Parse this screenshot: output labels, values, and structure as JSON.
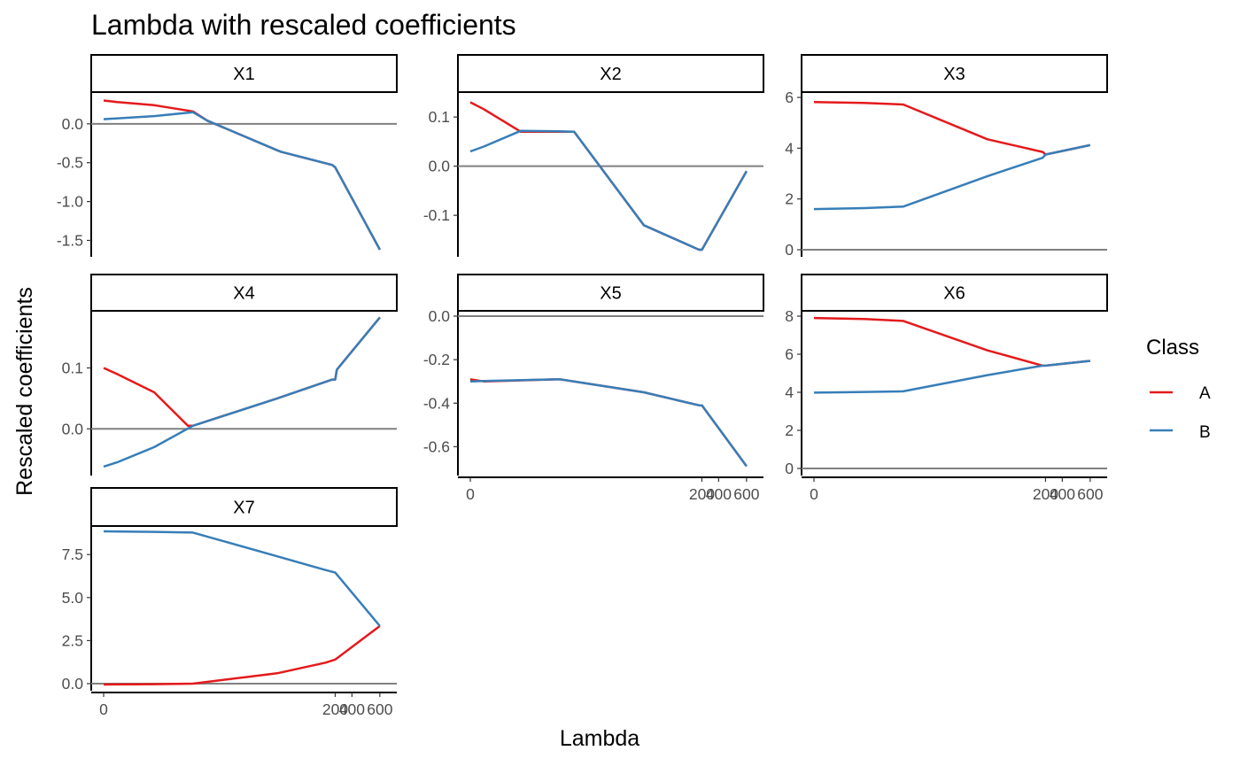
{
  "chart_data": {
    "type": "line",
    "title": "Lambda with rescaled coefficients",
    "xlabel": "Lambda",
    "ylabel": "Rescaled coefficients",
    "legend": {
      "title": "Class",
      "position": "right",
      "entries": [
        {
          "name": "A",
          "color": "#E41A1C"
        },
        {
          "name": "B",
          "color": "#377EB8"
        }
      ]
    },
    "x_axis_tick_labels": [
      "0",
      "200",
      "400",
      "600"
    ],
    "facets": [
      {
        "name": "X1",
        "ylim": [
          -1.62,
          0.34
        ],
        "y_ticks": [
          {
            "value": 0.0,
            "label": "0.0"
          },
          {
            "value": -0.5,
            "label": "-0.5"
          },
          {
            "value": -1.0,
            "label": "-1.0"
          },
          {
            "value": -1.5,
            "label": "-1.5"
          }
        ],
        "series": [
          {
            "name": "A",
            "points": [
              [
                0,
                0.3
              ],
              [
                8,
                0.28
              ],
              [
                30,
                0.24
              ],
              [
                53,
                0.16
              ],
              [
                68,
                0.04
              ],
              [
                140,
                -0.34
              ],
              [
                144,
                -0.36
              ],
              [
                197,
                -0.53
              ],
              [
                200,
                -0.56
              ],
              [
                600,
                -1.62
              ]
            ]
          },
          {
            "name": "B",
            "points": [
              [
                0,
                0.06
              ],
              [
                30,
                0.1
              ],
              [
                53,
                0.15
              ],
              [
                68,
                0.04
              ],
              [
                140,
                -0.34
              ],
              [
                144,
                -0.36
              ],
              [
                197,
                -0.53
              ],
              [
                200,
                -0.56
              ],
              [
                600,
                -1.62
              ]
            ]
          }
        ]
      },
      {
        "name": "X2",
        "ylim": [
          -0.17,
          0.14
        ],
        "y_ticks": [
          {
            "value": 0.1,
            "label": "0.1"
          },
          {
            "value": 0.0,
            "label": "0.0"
          },
          {
            "value": -0.1,
            "label": "-0.1"
          }
        ],
        "series": [
          {
            "name": "A",
            "points": [
              [
                0,
                0.13
              ],
              [
                8,
                0.116
              ],
              [
                30,
                0.07
              ],
              [
                53,
                0.07
              ],
              [
                68,
                0.07
              ],
              [
                140,
                -0.12
              ],
              [
                197,
                -0.17
              ],
              [
                200,
                -0.17
              ],
              [
                600,
                -0.01
              ]
            ]
          },
          {
            "name": "B",
            "points": [
              [
                0,
                0.03
              ],
              [
                8,
                0.04
              ],
              [
                30,
                0.072
              ],
              [
                53,
                0.071
              ],
              [
                68,
                0.07
              ],
              [
                140,
                -0.12
              ],
              [
                197,
                -0.17
              ],
              [
                200,
                -0.17
              ],
              [
                600,
                -0.01
              ]
            ]
          }
        ]
      },
      {
        "name": "X3",
        "ylim": [
          0,
          6
        ],
        "y_ticks": [
          {
            "value": 6,
            "label": "6"
          },
          {
            "value": 4,
            "label": "4"
          },
          {
            "value": 2,
            "label": "2"
          },
          {
            "value": 0,
            "label": "0"
          }
        ],
        "series": [
          {
            "name": "A",
            "points": [
              [
                0,
                5.82
              ],
              [
                30,
                5.78
              ],
              [
                53,
                5.72
              ],
              [
                140,
                4.35
              ],
              [
                197,
                3.85
              ],
              [
                200,
                3.75
              ],
              [
                600,
                4.12
              ]
            ]
          },
          {
            "name": "B",
            "points": [
              [
                0,
                1.6
              ],
              [
                30,
                1.64
              ],
              [
                53,
                1.7
              ],
              [
                140,
                2.9
              ],
              [
                197,
                3.62
              ],
              [
                200,
                3.75
              ],
              [
                600,
                4.12
              ]
            ]
          }
        ]
      },
      {
        "name": "X4",
        "ylim": [
          -0.065,
          0.185
        ],
        "y_ticks": [
          {
            "value": 0.1,
            "label": "0.1"
          },
          {
            "value": 0.0,
            "label": "0.0"
          }
        ],
        "series": [
          {
            "name": "A",
            "points": [
              [
                0,
                0.1
              ],
              [
                8,
                0.09
              ],
              [
                30,
                0.06
              ],
              [
                50,
                0.005
              ],
              [
                53,
                0.005
              ],
              [
                140,
                0.05
              ],
              [
                197,
                0.081
              ],
              [
                200,
                0.081
              ],
              [
                220,
                0.097
              ],
              [
                600,
                0.183
              ]
            ]
          },
          {
            "name": "B",
            "points": [
              [
                0,
                -0.062
              ],
              [
                8,
                -0.055
              ],
              [
                30,
                -0.03
              ],
              [
                53,
                0.005
              ],
              [
                140,
                0.05
              ],
              [
                197,
                0.081
              ],
              [
                200,
                0.081
              ],
              [
                220,
                0.097
              ],
              [
                600,
                0.183
              ]
            ]
          }
        ]
      },
      {
        "name": "X5",
        "ylim": [
          -0.7,
          0.0
        ],
        "y_ticks": [
          {
            "value": 0.0,
            "label": "0.0"
          },
          {
            "value": -0.2,
            "label": "-0.2"
          },
          {
            "value": -0.4,
            "label": "-0.4"
          },
          {
            "value": -0.6,
            "label": "-0.6"
          }
        ],
        "series": [
          {
            "name": "A",
            "points": [
              [
                0,
                -0.29
              ],
              [
                8,
                -0.3
              ],
              [
                53,
                -0.29
              ],
              [
                140,
                -0.35
              ],
              [
                197,
                -0.41
              ],
              [
                200,
                -0.41
              ],
              [
                600,
                -0.69
              ]
            ]
          },
          {
            "name": "B",
            "points": [
              [
                0,
                -0.3
              ],
              [
                8,
                -0.298
              ],
              [
                53,
                -0.29
              ],
              [
                140,
                -0.35
              ],
              [
                197,
                -0.41
              ],
              [
                200,
                -0.41
              ],
              [
                600,
                -0.69
              ]
            ]
          }
        ]
      },
      {
        "name": "X6",
        "ylim": [
          0,
          8
        ],
        "y_ticks": [
          {
            "value": 8,
            "label": "8"
          },
          {
            "value": 6,
            "label": "6"
          },
          {
            "value": 4,
            "label": "4"
          },
          {
            "value": 2,
            "label": "2"
          },
          {
            "value": 0,
            "label": "0"
          }
        ],
        "series": [
          {
            "name": "A",
            "points": [
              [
                0,
                7.9
              ],
              [
                30,
                7.85
              ],
              [
                53,
                7.75
              ],
              [
                140,
                6.2
              ],
              [
                197,
                5.4
              ],
              [
                200,
                5.4
              ],
              [
                600,
                5.65
              ]
            ]
          },
          {
            "name": "B",
            "points": [
              [
                0,
                3.98
              ],
              [
                30,
                4.02
              ],
              [
                53,
                4.05
              ],
              [
                140,
                4.9
              ],
              [
                197,
                5.4
              ],
              [
                200,
                5.4
              ],
              [
                600,
                5.65
              ]
            ]
          }
        ]
      },
      {
        "name": "X7",
        "ylim": [
          0,
          8.85
        ],
        "y_ticks": [
          {
            "value": 7.5,
            "label": "7.5"
          },
          {
            "value": 5.0,
            "label": "5.0"
          },
          {
            "value": 2.5,
            "label": "2.5"
          },
          {
            "value": 0.0,
            "label": "0.0"
          }
        ],
        "series": [
          {
            "name": "A",
            "points": [
              [
                0,
                -0.05
              ],
              [
                30,
                -0.03
              ],
              [
                53,
                0.0
              ],
              [
                140,
                0.6
              ],
              [
                190,
                1.22
              ],
              [
                200,
                1.4
              ],
              [
                600,
                3.35
              ]
            ]
          },
          {
            "name": "B",
            "points": [
              [
                0,
                8.85
              ],
              [
                30,
                8.82
              ],
              [
                53,
                8.78
              ],
              [
                140,
                7.4
              ],
              [
                190,
                6.6
              ],
              [
                200,
                6.45
              ],
              [
                600,
                3.35
              ]
            ]
          }
        ]
      }
    ]
  }
}
